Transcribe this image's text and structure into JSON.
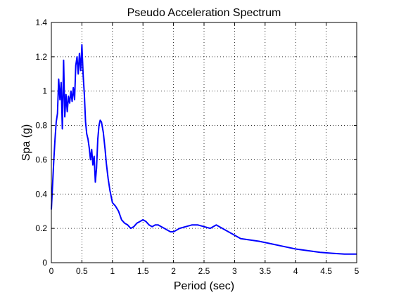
{
  "chart_data": {
    "type": "line",
    "title": "Pseudo Acceleration Spectrum",
    "xlabel": "Period (sec)",
    "ylabel": "Spa (g)",
    "xlim": [
      0,
      5
    ],
    "ylim": [
      0,
      1.4
    ],
    "xticks": [
      0,
      0.5,
      1,
      1.5,
      2,
      2.5,
      3,
      3.5,
      4,
      4.5,
      5
    ],
    "yticks": [
      0,
      0.2,
      0.4,
      0.6,
      0.8,
      1,
      1.2,
      1.4
    ],
    "xtick_labels": [
      "0",
      "0.5",
      "1",
      "1.5",
      "2",
      "2.5",
      "3",
      "3.5",
      "4",
      "4.5",
      "5"
    ],
    "ytick_labels": [
      "0",
      "0.2",
      "0.4",
      "0.6",
      "0.8",
      "1",
      "1.2",
      "1.4"
    ],
    "grid": true,
    "grid_style": "dotted",
    "series": [
      {
        "color": "#0000ff",
        "x": [
          0.0,
          0.02,
          0.04,
          0.06,
          0.08,
          0.1,
          0.12,
          0.14,
          0.16,
          0.18,
          0.2,
          0.22,
          0.24,
          0.26,
          0.28,
          0.3,
          0.32,
          0.34,
          0.36,
          0.38,
          0.4,
          0.42,
          0.44,
          0.46,
          0.48,
          0.5,
          0.52,
          0.54,
          0.56,
          0.58,
          0.6,
          0.62,
          0.64,
          0.66,
          0.68,
          0.7,
          0.72,
          0.74,
          0.76,
          0.78,
          0.8,
          0.82,
          0.85,
          0.88,
          0.9,
          0.93,
          0.96,
          1.0,
          1.05,
          1.1,
          1.15,
          1.2,
          1.25,
          1.3,
          1.35,
          1.4,
          1.45,
          1.5,
          1.55,
          1.6,
          1.65,
          1.7,
          1.75,
          1.8,
          1.85,
          1.9,
          1.95,
          2.0,
          2.05,
          2.1,
          2.2,
          2.3,
          2.4,
          2.5,
          2.6,
          2.65,
          2.7,
          2.75,
          2.8,
          2.9,
          3.0,
          3.1,
          3.2,
          3.4,
          3.6,
          3.8,
          4.0,
          4.2,
          4.4,
          4.6,
          4.8,
          5.0
        ],
        "y": [
          0.31,
          0.45,
          0.6,
          0.72,
          0.82,
          0.87,
          1.07,
          0.95,
          1.05,
          0.78,
          1.18,
          0.85,
          0.98,
          0.88,
          0.97,
          0.93,
          1.0,
          0.94,
          1.02,
          0.95,
          1.15,
          1.2,
          1.1,
          1.22,
          1.12,
          1.27,
          1.1,
          0.98,
          0.82,
          0.75,
          0.72,
          0.67,
          0.6,
          0.66,
          0.57,
          0.62,
          0.47,
          0.55,
          0.72,
          0.8,
          0.83,
          0.82,
          0.76,
          0.66,
          0.58,
          0.49,
          0.42,
          0.35,
          0.33,
          0.3,
          0.25,
          0.23,
          0.22,
          0.2,
          0.21,
          0.23,
          0.24,
          0.25,
          0.24,
          0.22,
          0.21,
          0.22,
          0.22,
          0.21,
          0.2,
          0.19,
          0.18,
          0.18,
          0.19,
          0.2,
          0.21,
          0.22,
          0.22,
          0.21,
          0.2,
          0.21,
          0.22,
          0.21,
          0.2,
          0.18,
          0.16,
          0.14,
          0.135,
          0.125,
          0.11,
          0.095,
          0.08,
          0.07,
          0.06,
          0.055,
          0.05,
          0.05
        ]
      }
    ]
  }
}
